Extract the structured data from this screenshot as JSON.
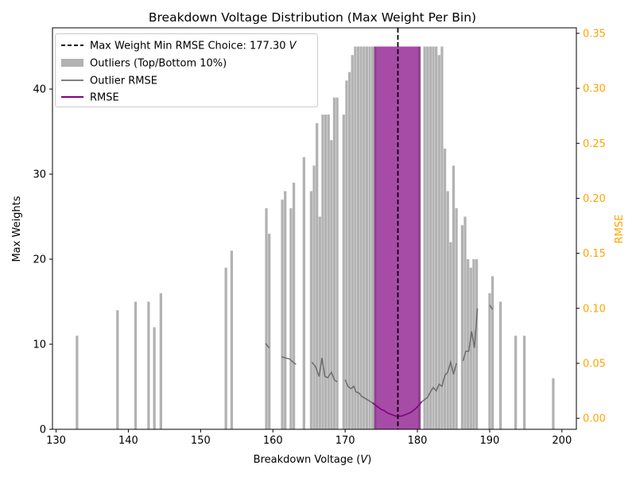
{
  "chart_data": {
    "type": "bar",
    "title": "Breakdown Voltage Distribution (Max Weight Per Bin)",
    "xlabel": "Breakdown Voltage (",
    "xlabel_unit": "V",
    "xlabel_close": ")",
    "ylabel": "Max Weights",
    "ylabel_right": "RMSE",
    "xlim": [
      129.5,
      202.0
    ],
    "ylim": [
      0,
      47.2
    ],
    "ylim_right": [
      -0.01,
      0.355
    ],
    "x_ticks": [
      130,
      140,
      150,
      160,
      170,
      180,
      190,
      200
    ],
    "y_ticks": [
      0,
      10,
      20,
      30,
      40
    ],
    "y_right_ticks": [
      0.0,
      0.05,
      0.1,
      0.15,
      0.2,
      0.25,
      0.3,
      0.35
    ],
    "x_tick_labels": [
      "130",
      "140",
      "150",
      "160",
      "170",
      "180",
      "190",
      "200"
    ],
    "y_tick_labels": [
      "0",
      "10",
      "20",
      "30",
      "40"
    ],
    "y_right_tick_labels": [
      "0.00",
      "0.05",
      "0.10",
      "0.15",
      "0.20",
      "0.25",
      "0.30",
      "0.35"
    ],
    "grid": false,
    "legend_position": "top-left",
    "colors": {
      "outlier_bar": "#b2b2b2",
      "selected_bar": "#a64ca6",
      "outlier_rmse": "#808080",
      "rmse": "#800080",
      "choice_line": "#000000",
      "right_axis": "#ffa500"
    },
    "legend": [
      {
        "label_prefix": "Max Weight Min RMSE Choice: 177.30 ",
        "label_unit": "V",
        "style": "dashed-line"
      },
      {
        "label_prefix": "Outliers (Top/Bottom 10%)",
        "label_unit": "",
        "style": "patch"
      },
      {
        "label_prefix": "Outlier RMSE",
        "label_unit": "",
        "style": "gray-line"
      },
      {
        "label_prefix": "RMSE",
        "label_unit": "",
        "style": "purple-line"
      }
    ],
    "choice_x": 177.3,
    "bar_width": 0.36,
    "bars": [
      [
        132.9,
        11
      ],
      [
        138.5,
        14
      ],
      [
        141.0,
        15
      ],
      [
        142.8,
        15
      ],
      [
        143.6,
        12
      ],
      [
        144.5,
        16
      ],
      [
        153.5,
        19
      ],
      [
        154.3,
        21
      ],
      [
        159.1,
        26
      ],
      [
        159.5,
        23
      ],
      [
        161.3,
        27
      ],
      [
        161.7,
        28
      ],
      [
        162.5,
        26
      ],
      [
        162.9,
        29
      ],
      [
        164.3,
        32
      ],
      [
        165.3,
        28
      ],
      [
        165.7,
        31
      ],
      [
        166.1,
        36
      ],
      [
        166.5,
        25
      ],
      [
        166.9,
        37
      ],
      [
        167.3,
        37
      ],
      [
        167.7,
        37
      ],
      [
        168.1,
        34
      ],
      [
        168.5,
        39
      ],
      [
        168.9,
        39
      ],
      [
        169.8,
        37
      ],
      [
        170.2,
        41
      ],
      [
        170.6,
        42
      ],
      [
        171.0,
        44
      ],
      [
        171.4,
        45
      ],
      [
        171.8,
        45
      ],
      [
        172.2,
        45
      ],
      [
        172.6,
        45
      ],
      [
        173.0,
        45
      ],
      [
        173.4,
        45
      ],
      [
        173.8,
        45
      ],
      [
        181.0,
        45
      ],
      [
        181.4,
        45
      ],
      [
        181.8,
        45
      ],
      [
        182.2,
        45
      ],
      [
        182.6,
        45
      ],
      [
        183.0,
        44
      ],
      [
        183.4,
        45
      ],
      [
        183.8,
        33
      ],
      [
        184.2,
        28
      ],
      [
        184.6,
        22
      ],
      [
        185.0,
        31
      ],
      [
        185.4,
        26
      ],
      [
        186.2,
        24
      ],
      [
        186.6,
        25
      ],
      [
        187.0,
        20
      ],
      [
        187.4,
        19
      ],
      [
        187.8,
        20
      ],
      [
        188.2,
        20
      ],
      [
        190.0,
        16
      ],
      [
        190.4,
        18
      ],
      [
        191.5,
        15
      ],
      [
        193.6,
        11
      ],
      [
        194.8,
        11
      ],
      [
        198.8,
        6
      ]
    ],
    "selected_bars": [
      [
        174.2,
        45
      ],
      [
        174.6,
        45
      ],
      [
        175.0,
        45
      ],
      [
        175.4,
        45
      ],
      [
        175.8,
        45
      ],
      [
        176.2,
        45
      ],
      [
        176.6,
        45
      ],
      [
        177.0,
        45
      ],
      [
        177.4,
        45
      ],
      [
        177.8,
        45
      ],
      [
        178.2,
        45
      ],
      [
        178.6,
        45
      ],
      [
        179.0,
        45
      ],
      [
        179.4,
        45
      ],
      [
        179.8,
        45
      ],
      [
        180.2,
        45
      ]
    ],
    "outlier_rmse_segments": [
      [
        [
          159.0,
          0.068
        ],
        [
          159.5,
          0.064
        ]
      ],
      [
        [
          161.2,
          0.056
        ],
        [
          161.7,
          0.055
        ],
        [
          162.3,
          0.054
        ],
        [
          162.8,
          0.051
        ],
        [
          163.2,
          0.049
        ]
      ],
      [
        [
          165.4,
          0.051
        ],
        [
          165.9,
          0.047
        ],
        [
          166.4,
          0.038
        ],
        [
          166.8,
          0.055
        ],
        [
          167.2,
          0.038
        ],
        [
          167.6,
          0.037
        ],
        [
          168.1,
          0.042
        ],
        [
          168.5,
          0.035
        ],
        [
          168.9,
          0.033
        ]
      ],
      [
        [
          170.0,
          0.035
        ],
        [
          170.4,
          0.029
        ],
        [
          170.8,
          0.027
        ],
        [
          171.2,
          0.029
        ],
        [
          171.5,
          0.024
        ],
        [
          171.9,
          0.023
        ],
        [
          172.3,
          0.02
        ],
        [
          172.8,
          0.018
        ],
        [
          173.3,
          0.016
        ],
        [
          173.8,
          0.014
        ],
        [
          174.2,
          0.012
        ]
      ],
      [
        [
          180.2,
          0.012
        ],
        [
          180.6,
          0.015
        ],
        [
          181.0,
          0.017
        ],
        [
          181.4,
          0.019
        ],
        [
          181.8,
          0.024
        ],
        [
          182.2,
          0.028
        ],
        [
          182.6,
          0.025
        ],
        [
          183.0,
          0.031
        ],
        [
          183.4,
          0.029
        ],
        [
          183.8,
          0.039
        ],
        [
          184.2,
          0.042
        ],
        [
          184.6,
          0.051
        ],
        [
          185.0,
          0.04
        ],
        [
          185.4,
          0.05
        ]
      ],
      [
        [
          186.3,
          0.052
        ],
        [
          186.7,
          0.061
        ],
        [
          187.1,
          0.061
        ],
        [
          187.5,
          0.079
        ],
        [
          187.9,
          0.064
        ],
        [
          188.3,
          0.1
        ]
      ],
      [
        [
          190.0,
          0.103
        ],
        [
          190.4,
          0.099
        ]
      ]
    ],
    "rmse_curve": [
      [
        173.8,
        0.014
      ],
      [
        174.2,
        0.012
      ],
      [
        174.6,
        0.01
      ],
      [
        175.0,
        0.008
      ],
      [
        175.4,
        0.007
      ],
      [
        175.8,
        0.005
      ],
      [
        176.2,
        0.004
      ],
      [
        176.6,
        0.003
      ],
      [
        177.0,
        0.002
      ],
      [
        177.4,
        0.002
      ],
      [
        177.8,
        0.002
      ],
      [
        178.2,
        0.003
      ],
      [
        178.6,
        0.004
      ],
      [
        179.0,
        0.005
      ],
      [
        179.4,
        0.007
      ],
      [
        179.8,
        0.009
      ],
      [
        180.2,
        0.012
      ],
      [
        180.6,
        0.015
      ]
    ]
  }
}
